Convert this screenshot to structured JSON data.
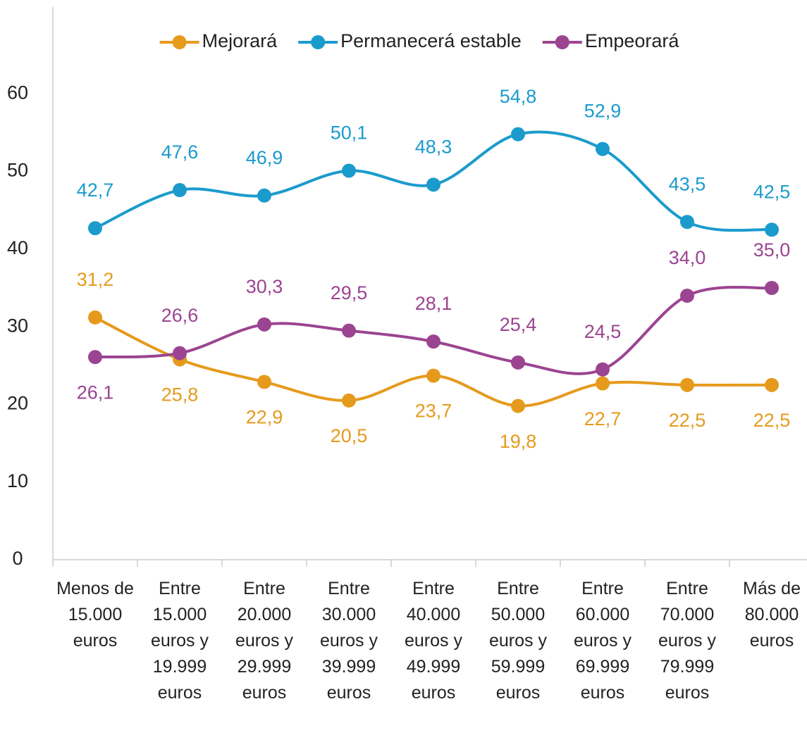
{
  "chart_data": {
    "type": "line",
    "categories": [
      "Menos de 15.000 euros",
      "Entre 15.000 euros y 19.999 euros",
      "Entre 20.000 euros y 29.999 euros",
      "Entre 30.000 euros y 39.999 euros",
      "Entre 40.000 euros y 49.999 euros",
      "Entre 50.000 euros y 59.999 euros",
      "Entre 60.000 euros y 69.999 euros",
      "Entre 70.000 euros y 79.999 euros",
      "Más de 80.000 euros"
    ],
    "series": [
      {
        "name": "Mejorará",
        "color": "#e69a1c",
        "values": [
          31.2,
          25.8,
          22.9,
          20.5,
          23.7,
          19.8,
          22.7,
          22.5,
          22.5
        ],
        "value_labels": [
          "31,2",
          "25,8",
          "22,9",
          "20,5",
          "23,7",
          "19,8",
          "22,7",
          "22,5",
          "22,5"
        ]
      },
      {
        "name": "Permanecerá estable",
        "color": "#1b9bcc",
        "values": [
          42.7,
          47.6,
          46.9,
          50.1,
          48.3,
          54.8,
          52.9,
          43.5,
          42.5
        ],
        "value_labels": [
          "42,7",
          "47,6",
          "46,9",
          "50,1",
          "48,3",
          "54,8",
          "52,9",
          "43,5",
          "42,5"
        ]
      },
      {
        "name": "Empeorará",
        "color": "#9b4491",
        "values": [
          26.1,
          26.6,
          30.3,
          29.5,
          28.1,
          25.4,
          24.5,
          34.0,
          35.0
        ],
        "value_labels": [
          "26,1",
          "26,6",
          "30,3",
          "29,5",
          "28,1",
          "25,4",
          "24,5",
          "34,0",
          "35,0"
        ]
      }
    ],
    "ylim": [
      0,
      70
    ],
    "yticks": [
      0,
      10,
      20,
      30,
      40,
      50,
      60
    ],
    "legend": "top",
    "smooth": true
  }
}
